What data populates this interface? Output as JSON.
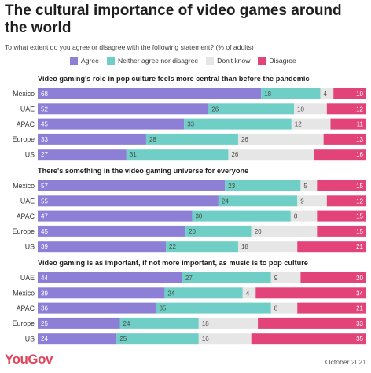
{
  "title": "The cultural importance of video games around the world",
  "subtitle": "To what extent do you agree or disagree with the following statement? (% of adults)",
  "brand": "YouGov",
  "date": "October 2021",
  "chart_data": {
    "type": "bar",
    "orientation": "horizontal-stacked-100",
    "legend_position": "top",
    "series_names": [
      "Agree",
      "Neither agree nor disagree",
      "Don't know",
      "Disagree"
    ],
    "colors": [
      "#8e7fd6",
      "#6fcfc6",
      "#e6e6e6",
      "#e2447a"
    ],
    "panels": [
      {
        "title": "Video gaming's role in pop culture feels more central than before the pandemic",
        "rows": [
          {
            "label": "Mexico",
            "values": [
              68,
              18,
              4,
              10
            ]
          },
          {
            "label": "UAE",
            "values": [
              52,
              26,
              10,
              12
            ]
          },
          {
            "label": "APAC",
            "values": [
              45,
              33,
              12,
              11
            ]
          },
          {
            "label": "Europe",
            "values": [
              33,
              28,
              26,
              13
            ]
          },
          {
            "label": "US",
            "values": [
              27,
              31,
              26,
              16
            ]
          }
        ]
      },
      {
        "title": "There's something in the video gaming universe for everyone",
        "rows": [
          {
            "label": "Mexico",
            "values": [
              57,
              23,
              5,
              15
            ]
          },
          {
            "label": "UAE",
            "values": [
              55,
              24,
              9,
              12
            ]
          },
          {
            "label": "APAC",
            "values": [
              47,
              30,
              8,
              15
            ]
          },
          {
            "label": "Europe",
            "values": [
              45,
              20,
              20,
              15
            ]
          },
          {
            "label": "US",
            "values": [
              39,
              22,
              18,
              21
            ]
          }
        ]
      },
      {
        "title": "Video gaming is as important, if not more important, as music is to pop culture",
        "rows": [
          {
            "label": "UAE",
            "values": [
              44,
              27,
              9,
              20
            ]
          },
          {
            "label": "Mexico",
            "values": [
              39,
              24,
              4,
              34
            ]
          },
          {
            "label": "APAC",
            "values": [
              36,
              35,
              8,
              21
            ]
          },
          {
            "label": "Europe",
            "values": [
              25,
              24,
              18,
              33
            ]
          },
          {
            "label": "US",
            "values": [
              24,
              25,
              16,
              35
            ]
          }
        ]
      }
    ]
  }
}
